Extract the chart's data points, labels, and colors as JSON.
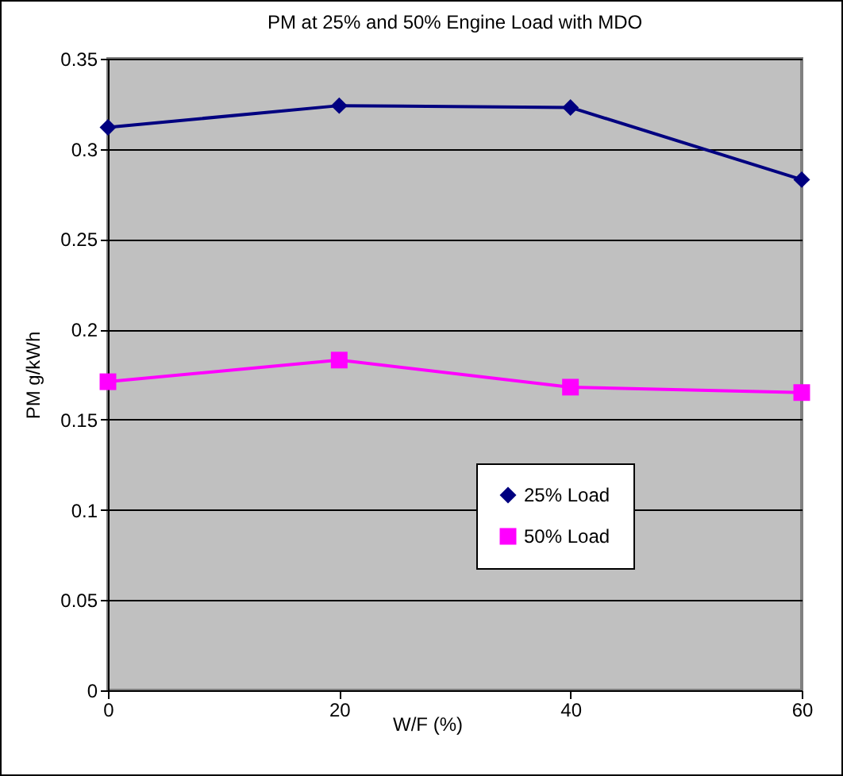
{
  "chart_data": {
    "type": "line",
    "title": "PM at 25% and 50% Engine Load with MDO",
    "xlabel": "W/F (%)",
    "ylabel": "PM g/kWh",
    "x": [
      0,
      20,
      40,
      60
    ],
    "series": [
      {
        "name": "25% Load",
        "color": "#000080",
        "marker": "diamond",
        "values": [
          0.312,
          0.324,
          0.323,
          0.283
        ]
      },
      {
        "name": "50% Load",
        "color": "#ff00ff",
        "marker": "square",
        "values": [
          0.171,
          0.183,
          0.168,
          0.165
        ]
      }
    ],
    "xlim": [
      0,
      60
    ],
    "xticks": [
      0,
      20,
      40,
      60
    ],
    "ylim": [
      0,
      0.35
    ],
    "yticks": [
      0,
      0.05,
      0.1,
      0.15,
      0.2,
      0.25,
      0.3,
      0.35
    ],
    "grid": "y",
    "legend": "bottom right",
    "line_style": "solid"
  }
}
